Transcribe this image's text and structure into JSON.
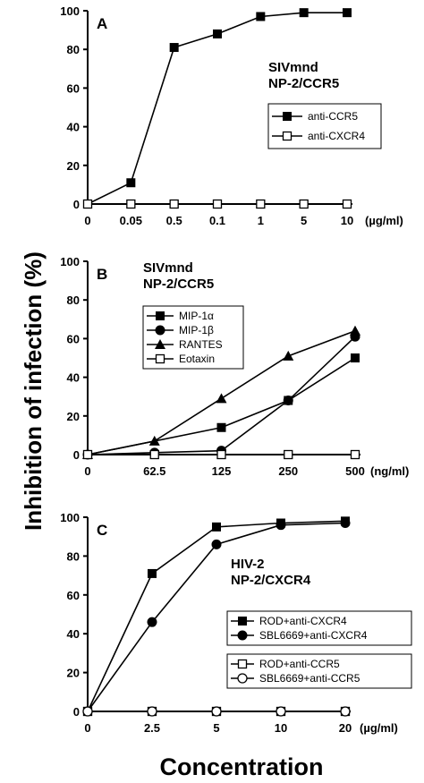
{
  "figure": {
    "ylabel": "Inhibition of infection (%)",
    "xlabel": "Concentration"
  },
  "chart_data": [
    {
      "type": "line",
      "panel": "A",
      "title_lines": [
        "SIVmnd",
        "NP-2/CCR5"
      ],
      "categories": [
        "0",
        "0.05",
        "0.5",
        "0.1",
        "1",
        "5",
        "10"
      ],
      "unit": "(µg/ml)",
      "ylim": [
        0,
        100
      ],
      "yticks": [
        0,
        20,
        40,
        60,
        80,
        100
      ],
      "legend_position": "right",
      "series": [
        {
          "name": "anti-CCR5",
          "marker": "square-filled",
          "values": [
            0,
            11,
            81,
            88,
            97,
            99,
            99
          ]
        },
        {
          "name": "anti-CXCR4",
          "marker": "square-open",
          "values": [
            0,
            0,
            0,
            0,
            0,
            0,
            0
          ]
        }
      ]
    },
    {
      "type": "line",
      "panel": "B",
      "title_lines": [
        "SIVmnd",
        "NP-2/CCR5"
      ],
      "categories": [
        "0",
        "62.5",
        "125",
        "250",
        "500"
      ],
      "unit": "(ng/ml)",
      "ylim": [
        0,
        100
      ],
      "yticks": [
        0,
        20,
        40,
        60,
        80,
        100
      ],
      "legend_position": "top-left",
      "series": [
        {
          "name": "MIP-1α",
          "marker": "square-filled",
          "values": [
            0,
            null,
            14,
            28,
            50
          ]
        },
        {
          "name": "MIP-1β",
          "marker": "circle-filled",
          "values": [
            0,
            1,
            2,
            28,
            61
          ]
        },
        {
          "name": "RANTES",
          "marker": "triangle-filled",
          "values": [
            0,
            7,
            29,
            51,
            64
          ]
        },
        {
          "name": "Eotaxin",
          "marker": "square-open",
          "values": [
            0,
            0,
            0,
            0,
            0
          ]
        }
      ]
    },
    {
      "type": "line",
      "panel": "C",
      "title_lines": [
        "HIV-2",
        "NP-2/CXCR4"
      ],
      "categories": [
        "0",
        "2.5",
        "5",
        "10",
        "20"
      ],
      "unit": "(µg/ml)",
      "ylim": [
        0,
        100
      ],
      "yticks": [
        0,
        20,
        40,
        60,
        80,
        100
      ],
      "legend_position": "bottom-right",
      "series": [
        {
          "name": "ROD+anti-CXCR4",
          "marker": "square-filled",
          "values": [
            0,
            71,
            95,
            97,
            98
          ]
        },
        {
          "name": "SBL6669+anti-CXCR4",
          "marker": "circle-filled",
          "values": [
            0,
            46,
            86,
            96,
            97
          ]
        },
        {
          "name": "ROD+anti-CCR5",
          "marker": "square-open",
          "values": [
            0,
            0,
            0,
            0,
            0
          ]
        },
        {
          "name": "SBL6669+anti-CCR5",
          "marker": "circle-open",
          "values": [
            0,
            0,
            0,
            0,
            0
          ]
        }
      ]
    }
  ]
}
